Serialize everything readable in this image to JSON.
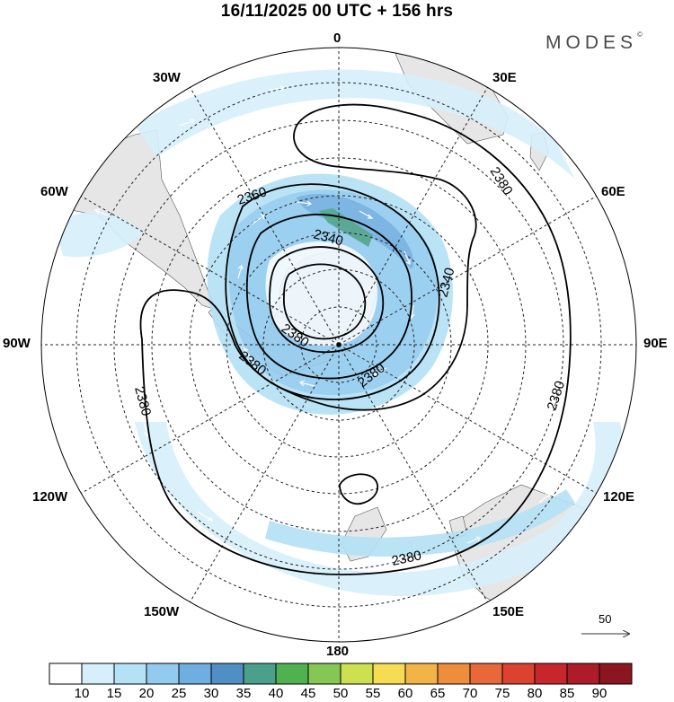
{
  "title": "16/11/2025  00 UTC  + 156 hrs",
  "brand": {
    "name": "MODES",
    "mark": "©"
  },
  "longitude_labels": [
    {
      "text": "0",
      "lon": 0
    },
    {
      "text": "30E",
      "lon": 30
    },
    {
      "text": "60E",
      "lon": 60
    },
    {
      "text": "90E",
      "lon": 90
    },
    {
      "text": "120E",
      "lon": 120
    },
    {
      "text": "150E",
      "lon": 150
    },
    {
      "text": "180",
      "lon": 180
    },
    {
      "text": "150W",
      "lon": -150
    },
    {
      "text": "120W",
      "lon": -120
    },
    {
      "text": "90W",
      "lon": -90
    },
    {
      "text": "60W",
      "lon": -60
    },
    {
      "text": "30W",
      "lon": -30
    }
  ],
  "contour_labels": [
    "2340",
    "2360",
    "2380"
  ],
  "contour_label_instances": [
    {
      "text": "2360",
      "id": "c1"
    },
    {
      "text": "2340",
      "id": "c2"
    },
    {
      "text": "2380",
      "id": "c3"
    },
    {
      "text": "2380",
      "id": "c4"
    },
    {
      "text": "2340",
      "id": "c5"
    },
    {
      "text": "2380",
      "id": "c6"
    },
    {
      "text": "2380",
      "id": "c7"
    },
    {
      "text": "2380",
      "id": "c8"
    },
    {
      "text": "2380",
      "id": "c9"
    },
    {
      "text": "2380",
      "id": "c10"
    }
  ],
  "vector_reference": {
    "label": "50"
  },
  "colorbar": {
    "labels": [
      "10",
      "15",
      "20",
      "25",
      "30",
      "35",
      "40",
      "45",
      "50",
      "55",
      "60",
      "65",
      "70",
      "75",
      "80",
      "85",
      "90"
    ],
    "colors": [
      "#ffffff",
      "#d6f0fb",
      "#b4e1f6",
      "#92cbef",
      "#6faee0",
      "#4f8fc4",
      "#4aa08a",
      "#4fb14f",
      "#86c655",
      "#cde04f",
      "#f6dc53",
      "#f3b447",
      "#ee8d3b",
      "#e8683a",
      "#dc4230",
      "#c7262d",
      "#ad1c28",
      "#8c1620"
    ]
  },
  "colors": {
    "land": "#e5e5e5",
    "wind_light": "#cfe9f8",
    "wind_mid": "#a6d3f0",
    "wind_strong": "#6faee0",
    "wind_max": "#4aa08a"
  }
}
